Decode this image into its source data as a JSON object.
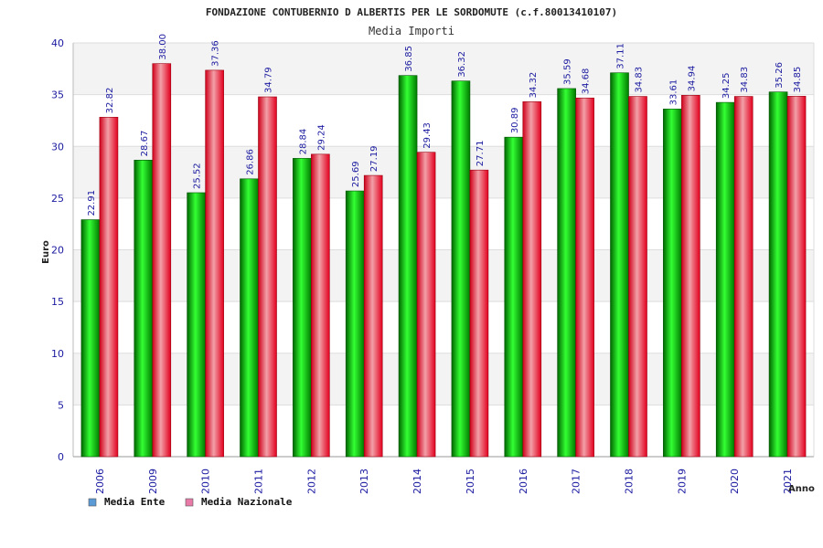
{
  "chart_data": {
    "type": "bar",
    "title": "FONDAZIONE CONTUBERNIO D ALBERTIS PER LE SORDOMUTE (c.f.80013410107)",
    "subtitle": "Media Importi",
    "xlabel": "Anno",
    "ylabel": "Euro",
    "ylim": [
      0,
      40
    ],
    "yticks": [
      0,
      5,
      10,
      15,
      20,
      25,
      30,
      35,
      40
    ],
    "categories": [
      "2006",
      "2009",
      "2010",
      "2011",
      "2012",
      "2013",
      "2014",
      "2015",
      "2016",
      "2017",
      "2018",
      "2019",
      "2020",
      "2021"
    ],
    "series": [
      {
        "name": "Media Ente",
        "color": "#00b400",
        "values": [
          22.91,
          28.67,
          25.52,
          26.86,
          28.84,
          25.69,
          36.85,
          36.32,
          30.89,
          35.59,
          37.11,
          33.61,
          34.25,
          35.26
        ],
        "labels": [
          "22.91",
          "28.67",
          "25.52",
          "26.86",
          "28.84",
          "25.69",
          "36.85",
          "36.32",
          "30.89",
          "35.59",
          "37.11",
          "33.61",
          "34.25",
          "35.26"
        ]
      },
      {
        "name": "Media Nazionale",
        "color": "#e8102a",
        "values": [
          32.82,
          38.0,
          37.36,
          34.79,
          29.24,
          27.19,
          29.43,
          27.71,
          34.32,
          34.68,
          34.83,
          34.94,
          34.83,
          34.85
        ],
        "labels": [
          "32.82",
          "38.00",
          "37.36",
          "34.79",
          "29.24",
          "27.19",
          "29.43",
          "27.71",
          "34.32",
          "34.68",
          "34.83",
          "34.94",
          "34.83",
          "34.85"
        ]
      }
    ],
    "legend": [
      {
        "name": "Media Ente",
        "color": "#5b9bd5"
      },
      {
        "name": "Media Nazionale",
        "color": "#e87aa8"
      }
    ],
    "grid": true,
    "legend_position": "bottom-left"
  }
}
